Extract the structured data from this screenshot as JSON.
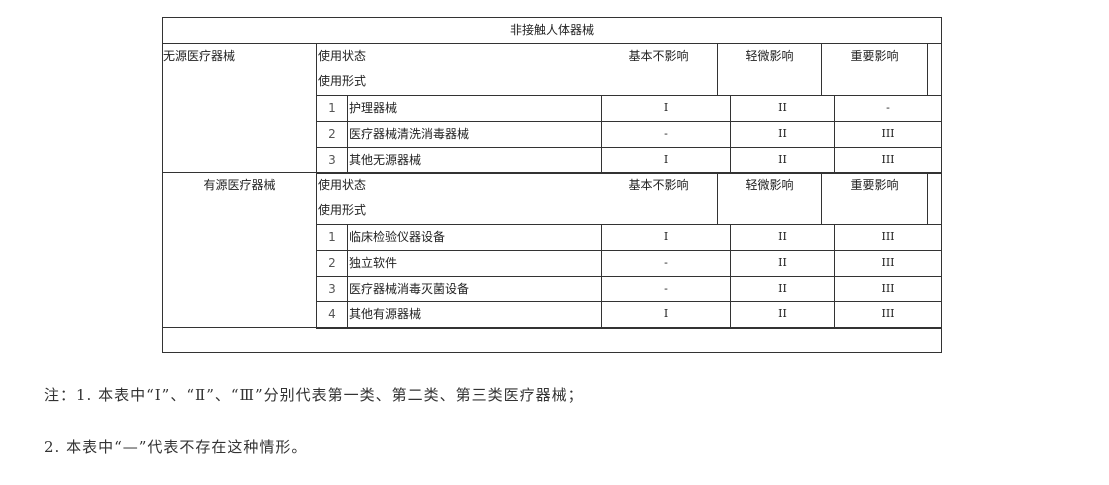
{
  "table": {
    "title": "非接触人体器械",
    "groups": [
      {
        "name": "无源医疗器械",
        "state_label": "使用状态",
        "form_label": "使用形式",
        "headers": [
          "基本不影响",
          "轻微影响",
          "重要影响"
        ],
        "rows": [
          {
            "no": "1",
            "name": "护理器械",
            "values": [
              "I",
              "II",
              "-"
            ]
          },
          {
            "no": "2",
            "name": "医疗器械清洗消毒器械",
            "values": [
              "-",
              "II",
              "III"
            ]
          },
          {
            "no": "3",
            "name": "其他无源器械",
            "values": [
              "I",
              "II",
              "III"
            ]
          }
        ]
      },
      {
        "name": "有源医疗器械",
        "state_label": "使用状态",
        "form_label": "使用形式",
        "headers": [
          "基本不影响",
          "轻微影响",
          "重要影响"
        ],
        "rows": [
          {
            "no": "1",
            "name": "临床检验仪器设备",
            "values": [
              "I",
              "II",
              "III"
            ]
          },
          {
            "no": "2",
            "name": "独立软件",
            "values": [
              "-",
              "II",
              "III"
            ]
          },
          {
            "no": "3",
            "name": "医疗器械消毒灭菌设备",
            "values": [
              "-",
              "II",
              "III"
            ]
          },
          {
            "no": "4",
            "name": "其他有源器械",
            "values": [
              "I",
              "II",
              "III"
            ]
          }
        ]
      }
    ]
  },
  "notes": [
    "注：1. 本表中“Ⅰ”、“Ⅱ”、“Ⅲ”分别代表第一类、第二类、第三类医疗器械；",
    "2. 本表中“—”代表不存在这种情形。"
  ]
}
